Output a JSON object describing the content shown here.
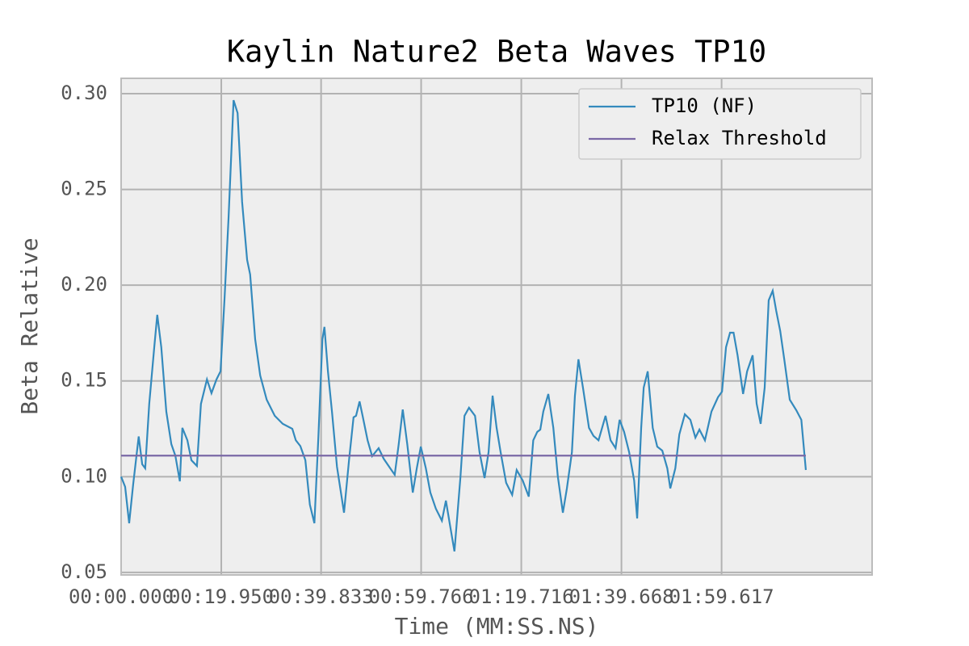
{
  "chart_data": {
    "type": "line",
    "title": "Kaylin Nature2 Beta Waves TP10",
    "x_label": "Time (MM:SS.NS)",
    "y_label": "Beta Relative",
    "xlim": [
      0,
      149.6
    ],
    "ylim": [
      0.0487,
      0.308
    ],
    "grid": true,
    "legend": "upper right",
    "xticks": [
      {
        "value": 0,
        "label": "00:00.000"
      },
      {
        "value": 19.95,
        "label": "00:19.950"
      },
      {
        "value": 39.833,
        "label": "00:39.833"
      },
      {
        "value": 59.766,
        "label": "00:59.766"
      },
      {
        "value": 79.716,
        "label": "01:19.716"
      },
      {
        "value": 99.668,
        "label": "01:39.668"
      },
      {
        "value": 119.617,
        "label": "01:59.617"
      }
    ],
    "yticks": [
      0.05,
      {
        "value": 0.1,
        "label": "0.10"
      },
      0.15,
      {
        "value": 0.2,
        "label": "0.20"
      },
      0.25,
      {
        "value": 0.3,
        "label": "0.30"
      }
    ],
    "series": [
      {
        "name": "TP10 (NF)",
        "color": "#348abd",
        "x": [
          0,
          0.8,
          1.6,
          2.4,
          3.5,
          4.2,
          4.8,
          5.6,
          6.6,
          7.2,
          8.0,
          9.0,
          10.0,
          10.8,
          11.7,
          12.2,
          13.2,
          14.0,
          15.1,
          15.9,
          17.1,
          18.0,
          19.0,
          19.8,
          20.6,
          21.4,
          22.4,
          23.2,
          24.1,
          25.1,
          25.7,
          26.7,
          27.7,
          29.0,
          30.6,
          32.2,
          34.1,
          34.8,
          35.7,
          36.7,
          37.6,
          38.5,
          39.3,
          40.1,
          40.5,
          41.2,
          42.0,
          43.0,
          44.4,
          45.4,
          46.3,
          46.8,
          47.5,
          48.1,
          49.1,
          50.0,
          51.3,
          52.3,
          53.6,
          54.5,
          55.3,
          56.1,
          57.0,
          58.1,
          58.9,
          59.7,
          60.7,
          61.6,
          62.7,
          63.9,
          64.7,
          65.5,
          66.4,
          67.6,
          68.4,
          69.3,
          70.5,
          71.4,
          72.4,
          73.2,
          74.0,
          74.8,
          75.6,
          76.7,
          77.9,
          78.8,
          80.0,
          81.2,
          82.1,
          82.9,
          83.5,
          84.1,
          85.1,
          86.1,
          87.0,
          88.0,
          88.8,
          89.8,
          90.4,
          91.1,
          92.0,
          93.2,
          94.1,
          95.1,
          96.5,
          97.5,
          98.5,
          99.3,
          100.2,
          101.2,
          102.2,
          102.8,
          103.6,
          104.1,
          104.9,
          105.9,
          106.8,
          107.8,
          108.8,
          109.4,
          110.4,
          111.2,
          112.3,
          113.4,
          114.4,
          115.2,
          116.3,
          117.6,
          118.9,
          119.7,
          120.5,
          121.3,
          122.0,
          122.8,
          123.9,
          124.7,
          125.8,
          126.6,
          127.4,
          128.2,
          129.0,
          129.8,
          130.5,
          131.3,
          132.1,
          133.2,
          134.5,
          135.5,
          136.4
        ],
        "values": [
          0.1,
          0.0947,
          0.0757,
          0.096,
          0.121,
          0.1065,
          0.1044,
          0.138,
          0.1676,
          0.1845,
          0.1676,
          0.134,
          0.117,
          0.111,
          0.0976,
          0.1255,
          0.119,
          0.1086,
          0.1056,
          0.138,
          0.1508,
          0.1436,
          0.1508,
          0.155,
          0.193,
          0.235,
          0.2966,
          0.2899,
          0.2435,
          0.2132,
          0.2056,
          0.1718,
          0.1529,
          0.1402,
          0.1318,
          0.1276,
          0.125,
          0.119,
          0.116,
          0.1086,
          0.0854,
          0.0757,
          0.121,
          0.1718,
          0.1782,
          0.155,
          0.134,
          0.1052,
          0.0812,
          0.1086,
          0.131,
          0.1318,
          0.1393,
          0.1318,
          0.119,
          0.1107,
          0.1149,
          0.1094,
          0.1044,
          0.101,
          0.117,
          0.1351,
          0.117,
          0.0917,
          0.1044,
          0.1157,
          0.1044,
          0.0917,
          0.0833,
          0.077,
          0.0875,
          0.0749,
          0.061,
          0.1,
          0.1318,
          0.136,
          0.1318,
          0.1128,
          0.0993,
          0.1128,
          0.1423,
          0.1255,
          0.1128,
          0.0968,
          0.0905,
          0.1035,
          0.098,
          0.0896,
          0.119,
          0.1234,
          0.1246,
          0.134,
          0.1432,
          0.1255,
          0.1,
          0.0812,
          0.0939,
          0.1128,
          0.1423,
          0.1613,
          0.1465,
          0.1255,
          0.1213,
          0.119,
          0.1318,
          0.119,
          0.1149,
          0.1297,
          0.1234,
          0.1128,
          0.098,
          0.0782,
          0.1255,
          0.1465,
          0.155,
          0.1255,
          0.1157,
          0.1136,
          0.1044,
          0.0939,
          0.1044,
          0.1221,
          0.1326,
          0.1297,
          0.1204,
          0.1246,
          0.119,
          0.134,
          0.1415,
          0.1444,
          0.1676,
          0.1752,
          0.1752,
          0.1634,
          0.1432,
          0.155,
          0.1634,
          0.1381,
          0.1276,
          0.1465,
          0.1921,
          0.1971,
          0.1866,
          0.176,
          0.1613,
          0.1402,
          0.1347,
          0.1297,
          0.1035
        ]
      },
      {
        "name": "Relax Threshold",
        "color": "#7a68a6",
        "x": [
          0,
          136.4
        ],
        "values": [
          0.111,
          0.111
        ]
      }
    ]
  }
}
